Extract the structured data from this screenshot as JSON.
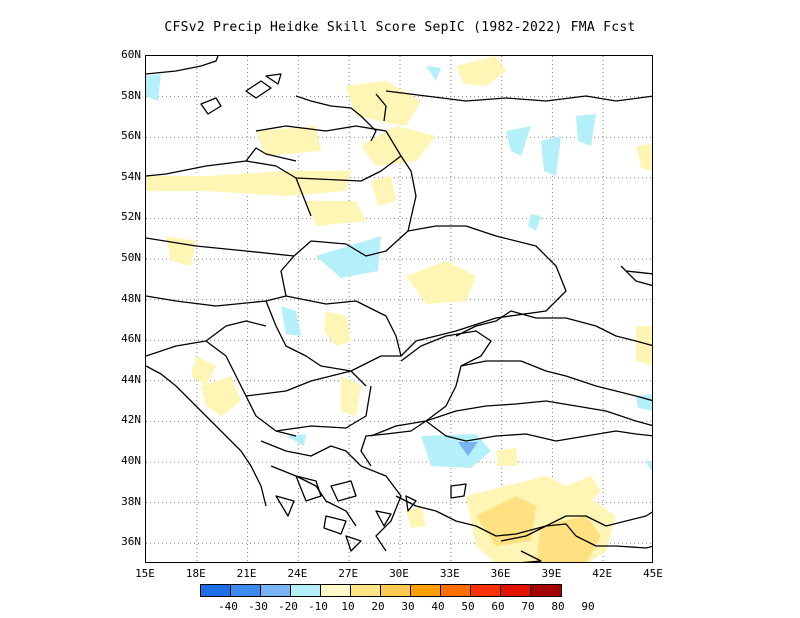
{
  "title": "CFSv2 Precip Heidke Skill Score SepIC (1982-2022) FMA Fcst",
  "lat_ticks": [
    "60N",
    "58N",
    "56N",
    "54N",
    "52N",
    "50N",
    "48N",
    "46N",
    "44N",
    "42N",
    "40N",
    "38N",
    "36N"
  ],
  "lon_ticks": [
    "15E",
    "18E",
    "21E",
    "24E",
    "27E",
    "30E",
    "33E",
    "36E",
    "39E",
    "42E",
    "45E"
  ],
  "colorbar": {
    "colors": [
      "#1e6ee6",
      "#3c8cf0",
      "#78b4f5",
      "#b4f0fa",
      "#fffac8",
      "#ffe682",
      "#ffc850",
      "#ffa000",
      "#ff6e00",
      "#ff3200",
      "#e11400",
      "#a50000"
    ],
    "labels": [
      "-40",
      "-30",
      "-20",
      "-10",
      "10",
      "20",
      "30",
      "40",
      "50",
      "60",
      "70",
      "80",
      "90"
    ]
  },
  "colors": {
    "positive_light": "#fff5b4",
    "positive_mid": "#ffe182",
    "negative_light": "#b4f0fa",
    "negative_mid": "#78b4f5"
  }
}
